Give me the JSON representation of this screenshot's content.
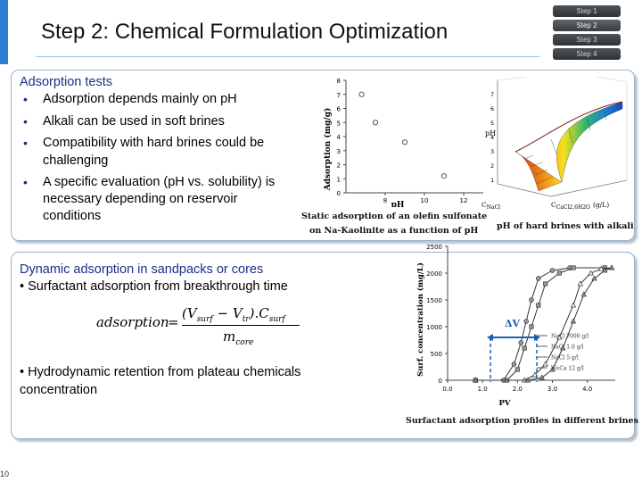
{
  "header": {
    "title": "Step 2: Chemical Formulation Optimization",
    "steps": [
      {
        "label": "Step 1",
        "active": false
      },
      {
        "label": "Step 2",
        "active": true
      },
      {
        "label": "Step 3",
        "active": false
      },
      {
        "label": "Step 4",
        "active": false
      }
    ]
  },
  "panel1": {
    "heading": "Adsorption tests",
    "bullets": [
      "Adsorption depends mainly on pH",
      "Alkali can be used in soft brines",
      "Compatibility with hard brines could be",
      "challenging",
      "A specific evaluation (pH vs. solubility) is",
      "necessary depending on reservoir",
      "conditions"
    ],
    "caption_line1": "Static adsorption of an olefin sulfonate",
    "caption_line2": "on Na-Kaolinite as a function of pH",
    "caption_right": "pH of hard brines with alkali"
  },
  "panel2": {
    "heading": "Dynamic adsorption in sandpacks or cores",
    "bullet1": "• Surfactant adsorption from breakthrough time",
    "bullet2_line1": "• Hydrodynamic retention from plateau chemicals",
    "bullet2_line2": "concentration",
    "caption": "Surfactant adsorption profiles in different brines",
    "formula": {
      "lhs": "adsorption",
      "eq": "=",
      "numerator": "(V",
      "num_sub1": "surf",
      "num_mid": " − V",
      "num_sub2": "tr",
      "num_end": ").C",
      "num_sub3": "surf",
      "denominator": "m",
      "den_sub": "core"
    }
  },
  "chart_data": [
    {
      "type": "scatter",
      "title": "",
      "xlabel": "pH",
      "ylabel": "Adsorption (mg/g)",
      "xlim": [
        6,
        13
      ],
      "ylim": [
        0,
        8
      ],
      "xticks": [
        "8",
        "10",
        "12"
      ],
      "yticks": [
        "0",
        "1",
        "2",
        "3",
        "4",
        "5",
        "6",
        "7",
        "8"
      ],
      "points": [
        {
          "x": 6.8,
          "y": 7.0
        },
        {
          "x": 7.5,
          "y": 5.0
        },
        {
          "x": 9.0,
          "y": 3.6
        },
        {
          "x": 11.0,
          "y": 1.2
        }
      ]
    },
    {
      "type": "surface",
      "xlabel": "C_NaCl (g/L)",
      "ylabel": "pH",
      "zlabel": "C_CaCl2,6H2O (g/L)",
      "xlabel_text": "C",
      "xlabel_sub": "NaCl",
      "ylabel_text": "pH",
      "zlabel_text": "C",
      "zlabel_sub": "CaCl2,6H2O",
      "zlabel_unit": "(g/L)",
      "zticks": [
        "1",
        "2",
        "3",
        "4",
        "5",
        "6",
        "7"
      ]
    },
    {
      "type": "line",
      "title": "",
      "xlabel": "PV",
      "ylabel": "Surf. concentration (mg/L)",
      "xlim": [
        0,
        4.8
      ],
      "ylim": [
        0,
        2500
      ],
      "xticks": [
        "0.0",
        "1.0",
        "2.0",
        "3.0",
        "4.0"
      ],
      "yticks": [
        "0",
        "500",
        "1000",
        "1500",
        "2000",
        "2500"
      ],
      "annotation": "ΔV",
      "series": [
        {
          "name": "NaCl 7000 g/l",
          "x": [
            0.8,
            1.6,
            1.9,
            2.1,
            2.25,
            2.4,
            2.6,
            3.0,
            3.5,
            4.5
          ],
          "values": [
            0,
            0,
            300,
            700,
            1100,
            1500,
            1900,
            2050,
            2100,
            2100
          ]
        },
        {
          "name": "NaCl 1.0 g/l",
          "x": [
            0.8,
            1.7,
            2.0,
            2.2,
            2.4,
            2.6,
            2.8,
            3.2,
            3.6,
            4.5
          ],
          "values": [
            0,
            0,
            200,
            600,
            1000,
            1400,
            1800,
            2000,
            2100,
            2100
          ]
        },
        {
          "name": "NaCl 5 g/l",
          "x": [
            0.8,
            2.2,
            2.5,
            2.8,
            3.2,
            3.6,
            3.8,
            4.1,
            4.4,
            4.7
          ],
          "values": [
            0,
            0,
            100,
            300,
            800,
            1400,
            1800,
            2000,
            2080,
            2100
          ]
        },
        {
          "name": "WoCa 12 g/l",
          "x": [
            0.8,
            2.3,
            2.7,
            3.0,
            3.3,
            3.6,
            3.9,
            4.2,
            4.5,
            4.7
          ],
          "values": [
            0,
            0,
            50,
            200,
            600,
            1100,
            1600,
            1900,
            2050,
            2100
          ]
        }
      ]
    }
  ],
  "footer": {
    "page_number": "10"
  },
  "colors": {
    "accent": "#2a7fd4",
    "heading": "#1a2f8a"
  }
}
